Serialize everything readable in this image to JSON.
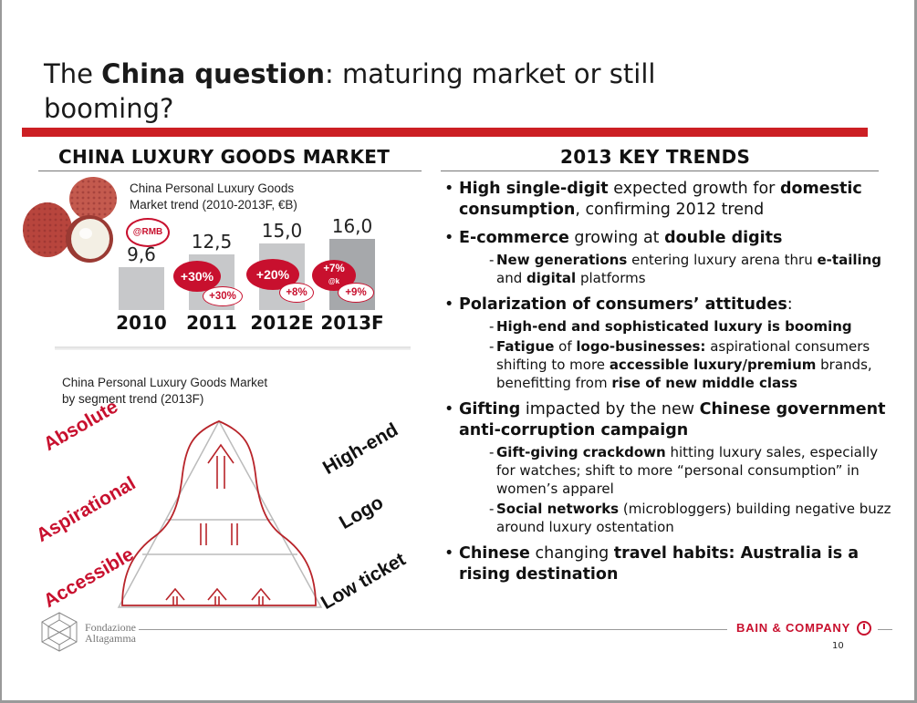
{
  "title": {
    "pre": "The ",
    "bold": "China question",
    "post": ": maturing market or still booming?"
  },
  "left": {
    "heading": "CHINA LUXURY GOODS MARKET",
    "chart_subtitle_1": "China Personal Luxury Goods",
    "chart_subtitle_2": "Market trend (2010-2013F, €B)",
    "pyramid_subtitle_1": "China Personal Luxury Goods Market",
    "pyramid_subtitle_2": "by segment trend (2013F)"
  },
  "chart_data": {
    "type": "bar",
    "title": "China Personal Luxury Goods Market trend (2010-2013F, €B)",
    "categories": [
      "2010",
      "2011",
      "2012E",
      "2013F"
    ],
    "values": [
      9.6,
      12.5,
      15.0,
      16.0
    ],
    "value_labels": [
      "9,6",
      "12,5",
      "15,0",
      "16,0"
    ],
    "ylim": [
      0,
      17
    ],
    "growth_eur": [
      "+30%",
      "+20%",
      "+7%"
    ],
    "growth_eur_unit": "@k",
    "growth_rmb": [
      "+30%",
      "+8%",
      "+9%"
    ],
    "rmb_marker": "@RMB",
    "bar_colors": [
      "#c7c8ca",
      "#c7c8ca",
      "#c7c8ca",
      "#a6a8ab"
    ]
  },
  "pyramid": {
    "segments_left": [
      "Absolute",
      "Aspirational",
      "Accessible"
    ],
    "segments_right": [
      "High-end",
      "Logo",
      "Low ticket"
    ]
  },
  "right": {
    "heading": "2013 KEY TRENDS"
  },
  "trends": {
    "t1": {
      "b1": "High single-digit",
      "n1": " expected growth for ",
      "b2": "domestic consumption",
      "n2": ", confirming 2012 trend"
    },
    "t2": {
      "b1": "E-commerce",
      "n1": " growing at ",
      "b2": "double digits",
      "s1": {
        "b1": "New generations",
        "n1": " entering luxury arena thru ",
        "b2": "e-tailing",
        "n2": " and ",
        "b3": "digital",
        "n3": " platforms"
      }
    },
    "t3": {
      "b1": "Polarization of consumers’ attitudes",
      "n1": ":",
      "s1": {
        "b1": "High-end and sophisticated luxury is booming"
      },
      "s2": {
        "b1": "Fatigue",
        "n1": " of ",
        "b2": "logo-businesses:",
        "n2": " aspirational consumers shifting to more ",
        "b3": "accessible luxury/premium",
        "n3": " brands, benefitting from ",
        "b4": "rise of new middle class"
      }
    },
    "t4": {
      "b1": "Gifting",
      "n1": " impacted by the new ",
      "b2": "Chinese government anti-corruption campaign",
      "s1": {
        "b1": "Gift-giving crackdown",
        "n1": " hitting luxury sales, especially for watches; shift to more “personal consumption” in women’s apparel"
      },
      "s2": {
        "b1": "Social networks",
        "n1": " (microbloggers) building negative buzz around luxury ostentation"
      }
    },
    "t5": {
      "b1": "Chinese",
      "n1": " changing ",
      "b2": "travel habits: Australia is a rising destination"
    }
  },
  "footer": {
    "left_logo_1": "Fondazione",
    "left_logo_2": "Altagamma",
    "right_logo": "BAIN & COMPANY",
    "page_number": "10"
  },
  "colors": {
    "accent_red": "#cc1f24",
    "bar_grey": "#c7c8ca",
    "bar_dark": "#a6a8ab"
  }
}
